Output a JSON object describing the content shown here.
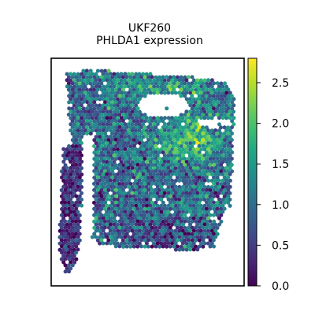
{
  "chart_data": {
    "type": "scatter",
    "title_line1": "UKF260",
    "title_line2": "PHLDA1 expression",
    "xlabel": "",
    "ylabel": "",
    "grid": false,
    "colorbar": {
      "colormap": "viridis",
      "min": 0.0,
      "max": 2.8,
      "ticks": [
        0.0,
        0.5,
        1.0,
        1.5,
        2.0,
        2.5
      ],
      "tick_labels": [
        "0.0",
        "0.5",
        "1.0",
        "1.5",
        "2.0",
        "2.5"
      ]
    },
    "value_range": [
      0.0,
      2.8
    ],
    "spot_count_approx": 2400,
    "notes": "Hexagonal spatial transcriptomics spots; individual spot values not labeled"
  }
}
